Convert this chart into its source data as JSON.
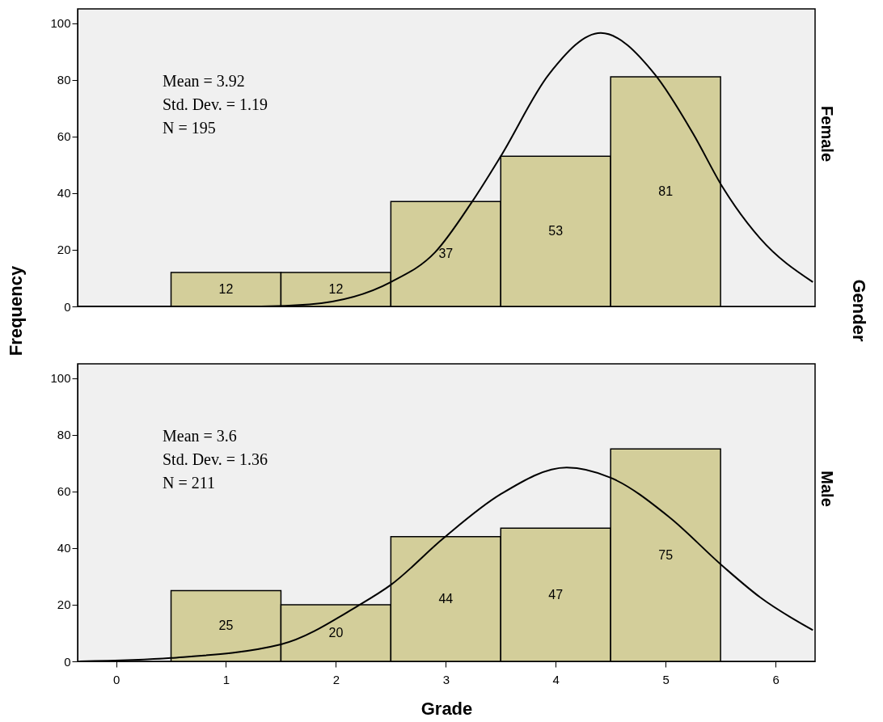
{
  "chart_data": [
    {
      "type": "histogram",
      "ylabel": "Frequency",
      "y2label": "Female",
      "legend_title": "Gender",
      "bins": [
        0.5,
        1.5,
        2.5,
        3.5,
        4.5,
        5.5
      ],
      "values": [
        12,
        12,
        37,
        53,
        81
      ],
      "value_labels": [
        "12",
        "12",
        "37",
        "53",
        "81"
      ],
      "color": "#d3ce9a",
      "xlim": [
        -0.35,
        6.36
      ],
      "xticks": [
        0,
        1,
        2,
        3,
        4,
        5,
        6
      ],
      "ylim": [
        0,
        105
      ],
      "yticks": [
        0,
        20,
        40,
        60,
        80,
        100
      ],
      "tick_labels": "y",
      "annotations": [
        "Mean = 3.92",
        "Std. Dev. = 1.19",
        "N = 195"
      ],
      "series": [
        {
          "type": "line",
          "color": "#000000",
          "x": [
            -0.35,
            1.32,
            1.76,
            2.5,
            2.9,
            3.24,
            3.5,
            3.94,
            4.41,
            4.9,
            5.25,
            5.52,
            5.86,
            6.34
          ],
          "values": [
            0,
            0,
            0.7,
            8.6,
            19,
            37,
            53,
            82,
            96.5,
            82,
            61,
            42,
            24,
            8.6
          ]
        }
      ]
    },
    {
      "type": "histogram",
      "xlabel": "Grade",
      "y2label": "Male",
      "bins": [
        0.5,
        1.5,
        2.5,
        3.5,
        4.5,
        5.5
      ],
      "values": [
        25,
        20,
        44,
        47,
        75
      ],
      "value_labels": [
        "25",
        "20",
        "44",
        "47",
        "75"
      ],
      "color": "#d3ce9a",
      "xlim": [
        -0.35,
        6.36
      ],
      "xticks": [
        0,
        1,
        2,
        3,
        4,
        5,
        6
      ],
      "ylim": [
        0,
        105
      ],
      "yticks": [
        0,
        20,
        40,
        60,
        80,
        100
      ],
      "annotations": [
        "Mean = 3.6",
        "Std. Dev. = 1.36",
        "N = 211"
      ],
      "series": [
        {
          "type": "line",
          "color": "#000000",
          "x": [
            -0.33,
            0.5,
            1.5,
            2.2,
            2.5,
            2.98,
            3.5,
            4.1,
            4.5,
            5.03,
            5.52,
            5.86,
            6.34
          ],
          "values": [
            0,
            1.2,
            6,
            19.6,
            27,
            43.5,
            59,
            68.4,
            64.8,
            51,
            33.6,
            22.6,
            11
          ]
        }
      ]
    }
  ]
}
